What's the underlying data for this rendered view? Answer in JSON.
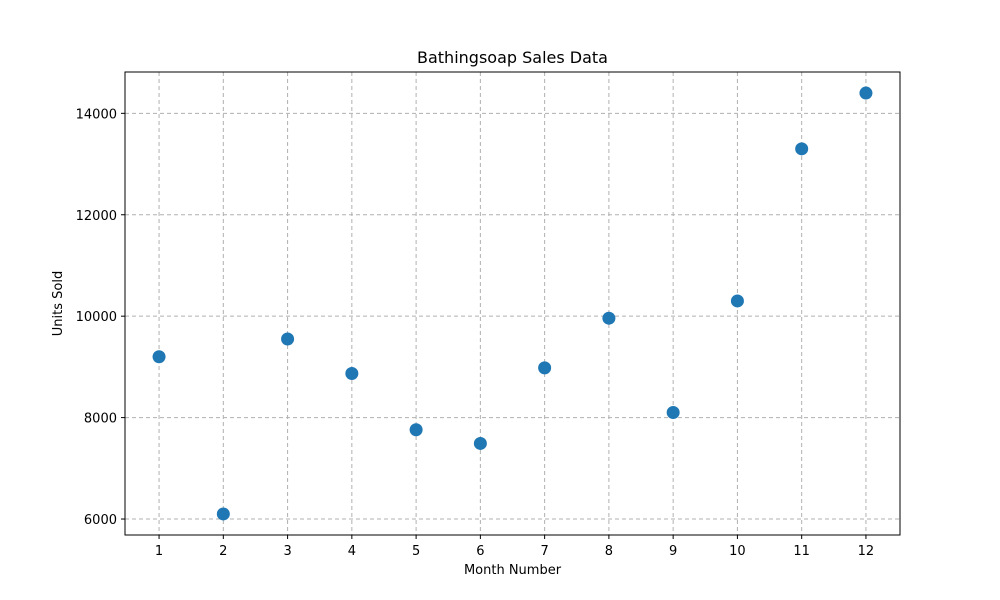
{
  "chart_data": {
    "type": "scatter",
    "title": "Bathingsoap Sales Data",
    "xlabel": "Month Number",
    "ylabel": "Units Sold",
    "x": [
      1,
      2,
      3,
      4,
      5,
      6,
      7,
      8,
      9,
      10,
      11,
      12
    ],
    "y": [
      9200,
      6100,
      9550,
      8870,
      7760,
      7490,
      8980,
      9960,
      8100,
      10300,
      13300,
      14400
    ],
    "xticks": [
      "1",
      "2",
      "3",
      "4",
      "5",
      "6",
      "7",
      "8",
      "9",
      "10",
      "11",
      "12"
    ],
    "yticks": [
      "6000",
      "8000",
      "10000",
      "12000",
      "14000"
    ],
    "xlim": [
      0.47,
      12.53
    ],
    "ylim": [
      5685,
      14815
    ],
    "grid": true,
    "marker_color": "#1f77b4",
    "grid_color": "#b0b0b0"
  }
}
